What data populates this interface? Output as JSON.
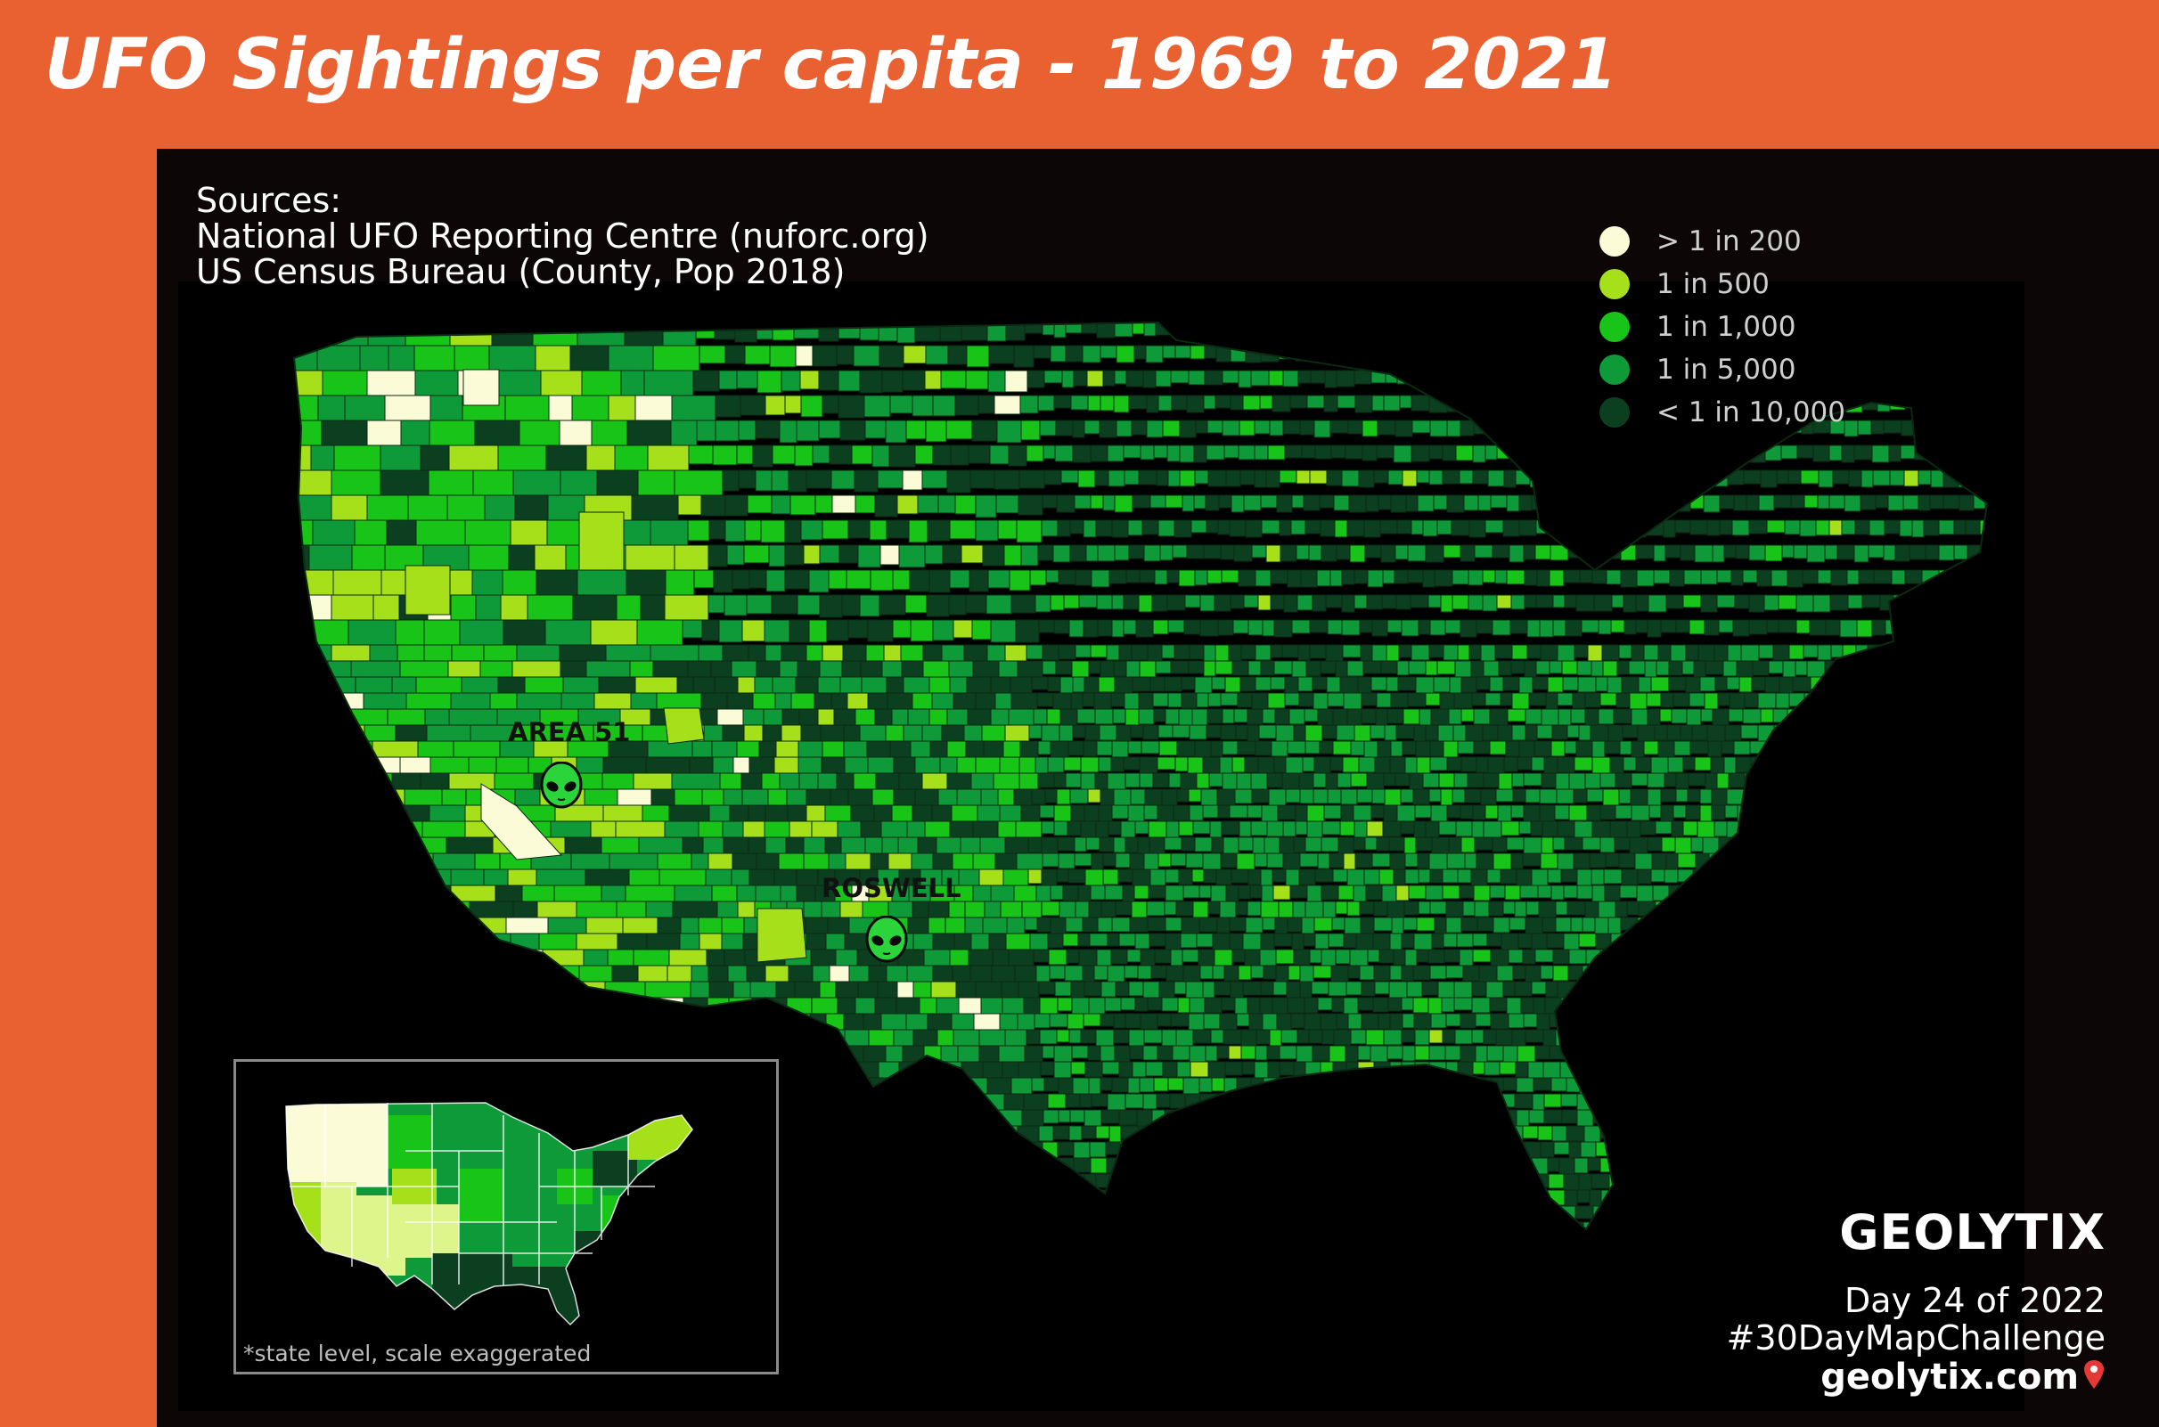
{
  "title": "UFO Sightings per capita - 1969 to 2021",
  "sources": {
    "heading": "Sources:",
    "lines": [
      "National UFO Reporting Centre (nuforc.org)",
      "US Census Bureau (County, Pop 2018)"
    ]
  },
  "legend": [
    {
      "label": "> 1 in 200",
      "color": "#fbfbd8"
    },
    {
      "label": "1 in 500",
      "color": "#a6e01a"
    },
    {
      "label": "1 in 1,000",
      "color": "#17c417"
    },
    {
      "label": "1 in 5,000",
      "color": "#0f9a3a"
    },
    {
      "label": "< 1 in 10,000",
      "color": "#0b3f20"
    }
  ],
  "markers": [
    {
      "label": "AREA 51",
      "icon": "alien-icon"
    },
    {
      "label": "ROSWELL",
      "icon": "alien-icon"
    }
  ],
  "inset": {
    "note": "*state level, scale exaggerated"
  },
  "branding": {
    "logo": "GEOLYTIX",
    "day": "Day 24 of 2022",
    "hashtag": "#30DayMapChallenge",
    "website": "geolytix.com",
    "pin_icon": "map-pin-icon"
  }
}
